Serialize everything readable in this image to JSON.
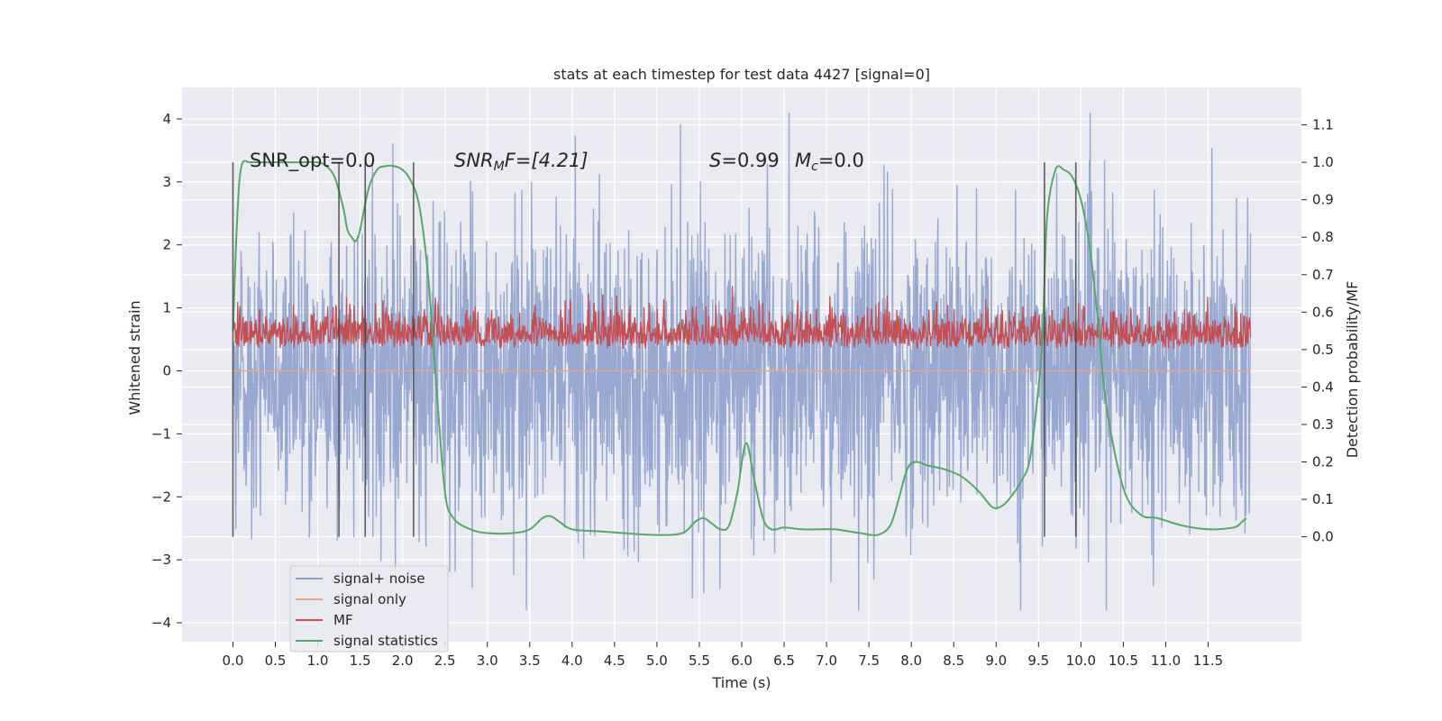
{
  "chart_data": {
    "type": "line",
    "title": "stats at each timestep for test data 4427 [signal=0]",
    "xlabel": "Time (s)",
    "ylabel_left": "Whitened strain",
    "ylabel_right": "Detection probability/MF",
    "xlim": [
      -0.6,
      12.6
    ],
    "ylim_left": [
      -4.3,
      4.5
    ],
    "ylim_right": [
      -0.28,
      1.2
    ],
    "x_ticks": [
      "0.0",
      "0.5",
      "1.0",
      "1.5",
      "2.0",
      "2.5",
      "3.0",
      "3.5",
      "4.0",
      "4.5",
      "5.0",
      "5.5",
      "6.0",
      "6.5",
      "7.0",
      "7.5",
      "8.0",
      "8.5",
      "9.0",
      "9.5",
      "10.0",
      "10.5",
      "11.0",
      "11.5"
    ],
    "y_ticks_left": [
      "4",
      "3",
      "2",
      "1",
      "0",
      "−1",
      "−2",
      "−3",
      "−4"
    ],
    "y_ticks_right": [
      "1.1",
      "1.0",
      "0.9",
      "0.8",
      "0.7",
      "0.6",
      "0.5",
      "0.4",
      "0.3",
      "0.2",
      "0.1",
      "0.0"
    ],
    "grid": true,
    "legend_position": "lower-left",
    "annotations": {
      "snr_opt": "SNR_opt=0.0",
      "snr_mf_main": "SNR",
      "snr_mf_sub": "M",
      "snr_mf_rest": "F=[4.21]",
      "s_label": "S",
      "s_value": "=0.99",
      "mc_label": "M",
      "mc_sub": "c",
      "mc_value": "=0.0"
    },
    "vertical_markers_x": [
      0.0,
      1.25,
      1.56,
      2.13,
      9.57,
      9.94
    ],
    "series": [
      {
        "name": "signal+ noise",
        "axis": "left",
        "color": "#8ea2cc",
        "description_values": {
          "t_start": 0.0,
          "t_end": 12.0,
          "approx_range": [
            -3.8,
            4.1
          ]
        }
      },
      {
        "name": "signal only",
        "axis": "left",
        "color": "#e8a58b",
        "values_flat": 0.0
      },
      {
        "name": "MF",
        "axis": "right",
        "color": "#c44e52",
        "description_values": {
          "t_start": 0.0,
          "t_end": 12.0,
          "approx_range": [
            0.5,
            0.67
          ]
        }
      },
      {
        "name": "signal statistics",
        "axis": "right",
        "color": "#55a868",
        "x": [
          0.0,
          0.05,
          0.1,
          0.2,
          0.3,
          0.5,
          0.8,
          1.0,
          1.1,
          1.2,
          1.3,
          1.35,
          1.4,
          1.45,
          1.5,
          1.6,
          1.7,
          1.8,
          1.9,
          2.0,
          2.1,
          2.2,
          2.3,
          2.4,
          2.5,
          2.6,
          2.8,
          3.0,
          3.3,
          3.5,
          3.65,
          3.75,
          3.85,
          4.0,
          4.3,
          4.6,
          5.0,
          5.3,
          5.45,
          5.55,
          5.65,
          5.75,
          5.85,
          5.95,
          6.05,
          6.15,
          6.25,
          6.35,
          6.5,
          6.7,
          6.9,
          7.1,
          7.25,
          7.4,
          7.6,
          7.75,
          7.85,
          7.95,
          8.05,
          8.2,
          8.4,
          8.6,
          8.8,
          8.95,
          9.05,
          9.15,
          9.3,
          9.4,
          9.5,
          9.55,
          9.6,
          9.7,
          9.8,
          9.9,
          10.0,
          10.1,
          10.2,
          10.3,
          10.5,
          10.7,
          10.9,
          11.2,
          11.5,
          11.8,
          11.9,
          11.95
        ],
        "y": [
          0.55,
          0.85,
          0.99,
          1.0,
          1.0,
          1.0,
          1.0,
          1.0,
          0.99,
          0.96,
          0.88,
          0.82,
          0.8,
          0.79,
          0.82,
          0.93,
          0.98,
          0.99,
          0.99,
          0.98,
          0.95,
          0.88,
          0.7,
          0.4,
          0.12,
          0.05,
          0.02,
          0.01,
          0.01,
          0.02,
          0.05,
          0.055,
          0.04,
          0.02,
          0.015,
          0.01,
          0.005,
          0.01,
          0.04,
          0.05,
          0.035,
          0.02,
          0.03,
          0.12,
          0.25,
          0.15,
          0.05,
          0.02,
          0.025,
          0.02,
          0.02,
          0.02,
          0.015,
          0.01,
          0.005,
          0.03,
          0.1,
          0.18,
          0.2,
          0.19,
          0.18,
          0.16,
          0.12,
          0.08,
          0.08,
          0.1,
          0.15,
          0.21,
          0.4,
          0.55,
          0.85,
          0.98,
          0.98,
          0.96,
          0.9,
          0.78,
          0.58,
          0.35,
          0.13,
          0.06,
          0.05,
          0.03,
          0.02,
          0.025,
          0.04,
          0.05
        ]
      }
    ]
  }
}
